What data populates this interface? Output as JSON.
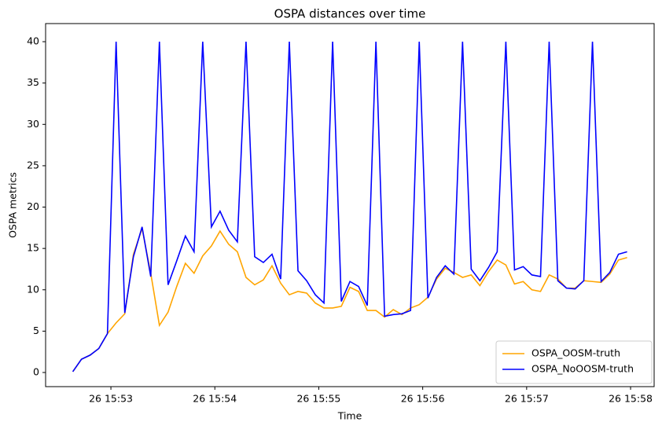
{
  "chart_data": {
    "type": "line",
    "title": "OSPA distances over time",
    "x_label": "Time",
    "y_label": "OSPA metrics",
    "x": [
      38,
      43,
      48,
      53,
      58,
      63,
      68,
      73,
      78,
      83,
      88,
      93,
      98,
      103,
      108,
      113,
      118,
      123,
      128,
      133,
      138,
      143,
      148,
      153,
      158,
      163,
      168,
      173,
      178,
      183,
      188,
      193,
      198,
      203,
      208,
      213,
      218,
      223,
      228,
      233,
      238,
      243,
      248,
      253,
      258,
      263,
      268,
      273,
      278,
      283,
      288,
      293,
      298,
      303,
      308,
      313,
      318,
      323,
      328,
      333,
      338,
      343,
      348,
      353,
      358
    ],
    "series": [
      {
        "name": "OSPA_OOSM-truth",
        "color": "orange",
        "values": [
          0.1,
          1.6,
          2.1,
          2.9,
          4.7,
          6.0,
          7.1,
          14.3,
          17.4,
          12.0,
          5.7,
          7.3,
          10.4,
          13.2,
          12.0,
          14.1,
          15.3,
          17.1,
          15.5,
          14.6,
          11.5,
          10.6,
          11.2,
          12.9,
          10.8,
          9.4,
          9.8,
          9.6,
          8.4,
          7.8,
          7.8,
          8.0,
          10.3,
          9.8,
          7.5,
          7.5,
          6.7,
          7.6,
          7.0,
          7.8,
          8.2,
          9.1,
          11.3,
          12.6,
          12.1,
          11.5,
          11.8,
          10.5,
          12.2,
          13.6,
          13.0,
          10.7,
          11.0,
          10.0,
          9.8,
          11.8,
          11.3,
          10.2,
          10.2,
          11.1,
          11.0,
          10.9,
          11.9,
          13.6,
          13.9
        ]
      },
      {
        "name": "OSPA_NoOOSM-truth",
        "color": "blue",
        "values": [
          0.1,
          1.6,
          2.1,
          2.9,
          4.7,
          40,
          7.2,
          14.0,
          17.6,
          11.6,
          40,
          10.6,
          13.5,
          16.5,
          14.6,
          40,
          17.6,
          19.5,
          17.2,
          15.8,
          40,
          14.0,
          13.3,
          14.3,
          11.3,
          40,
          12.3,
          11.1,
          9.4,
          8.4,
          40,
          8.6,
          11.0,
          10.4,
          8.1,
          40,
          6.8,
          7.0,
          7.1,
          7.5,
          40,
          9.0,
          11.5,
          12.9,
          11.9,
          40,
          12.5,
          11.1,
          12.7,
          14.6,
          40,
          12.4,
          12.8,
          11.8,
          11.6,
          40,
          11.1,
          10.2,
          10.1,
          11.1,
          40,
          11.0,
          12.1,
          14.3,
          14.6
        ]
      }
    ],
    "xlim": [
      22.3,
      373.6
    ],
    "xticks": [
      {
        "value": 60,
        "label": "26 15:53"
      },
      {
        "value": 120,
        "label": "26 15:54"
      },
      {
        "value": 180,
        "label": "26 15:55"
      },
      {
        "value": 240,
        "label": "26 15:56"
      },
      {
        "value": 300,
        "label": "26 15:57"
      },
      {
        "value": 360,
        "label": "26 15:58"
      }
    ],
    "ylim": [
      -1.71,
      42.19
    ],
    "yticks": [
      0,
      5,
      10,
      15,
      20,
      25,
      30,
      35,
      40
    ],
    "legend": "lower right"
  }
}
